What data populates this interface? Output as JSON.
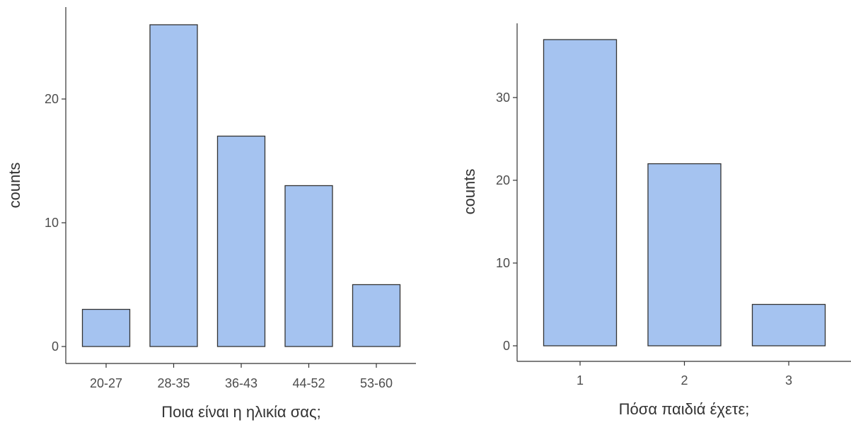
{
  "chart_data": [
    {
      "type": "bar",
      "categories": [
        "20-27",
        "28-35",
        "36-43",
        "44-52",
        "53-60"
      ],
      "values": [
        3,
        26,
        17,
        13,
        5
      ],
      "xlabel": "Ποια είναι η ηλικία σας;",
      "ylabel": "counts",
      "yticks": [
        0,
        10,
        20
      ],
      "ylim": [
        0,
        26
      ],
      "grid": false,
      "bar_color": "#a5c3f0"
    },
    {
      "type": "bar",
      "categories": [
        "1",
        "2",
        "3"
      ],
      "values": [
        37,
        22,
        5
      ],
      "xlabel": "Πόσα παιδιά έχετε;",
      "ylabel": "counts",
      "yticks": [
        0,
        10,
        20,
        30
      ],
      "ylim": [
        0,
        37
      ],
      "grid": false,
      "bar_color": "#a5c3f0"
    }
  ]
}
